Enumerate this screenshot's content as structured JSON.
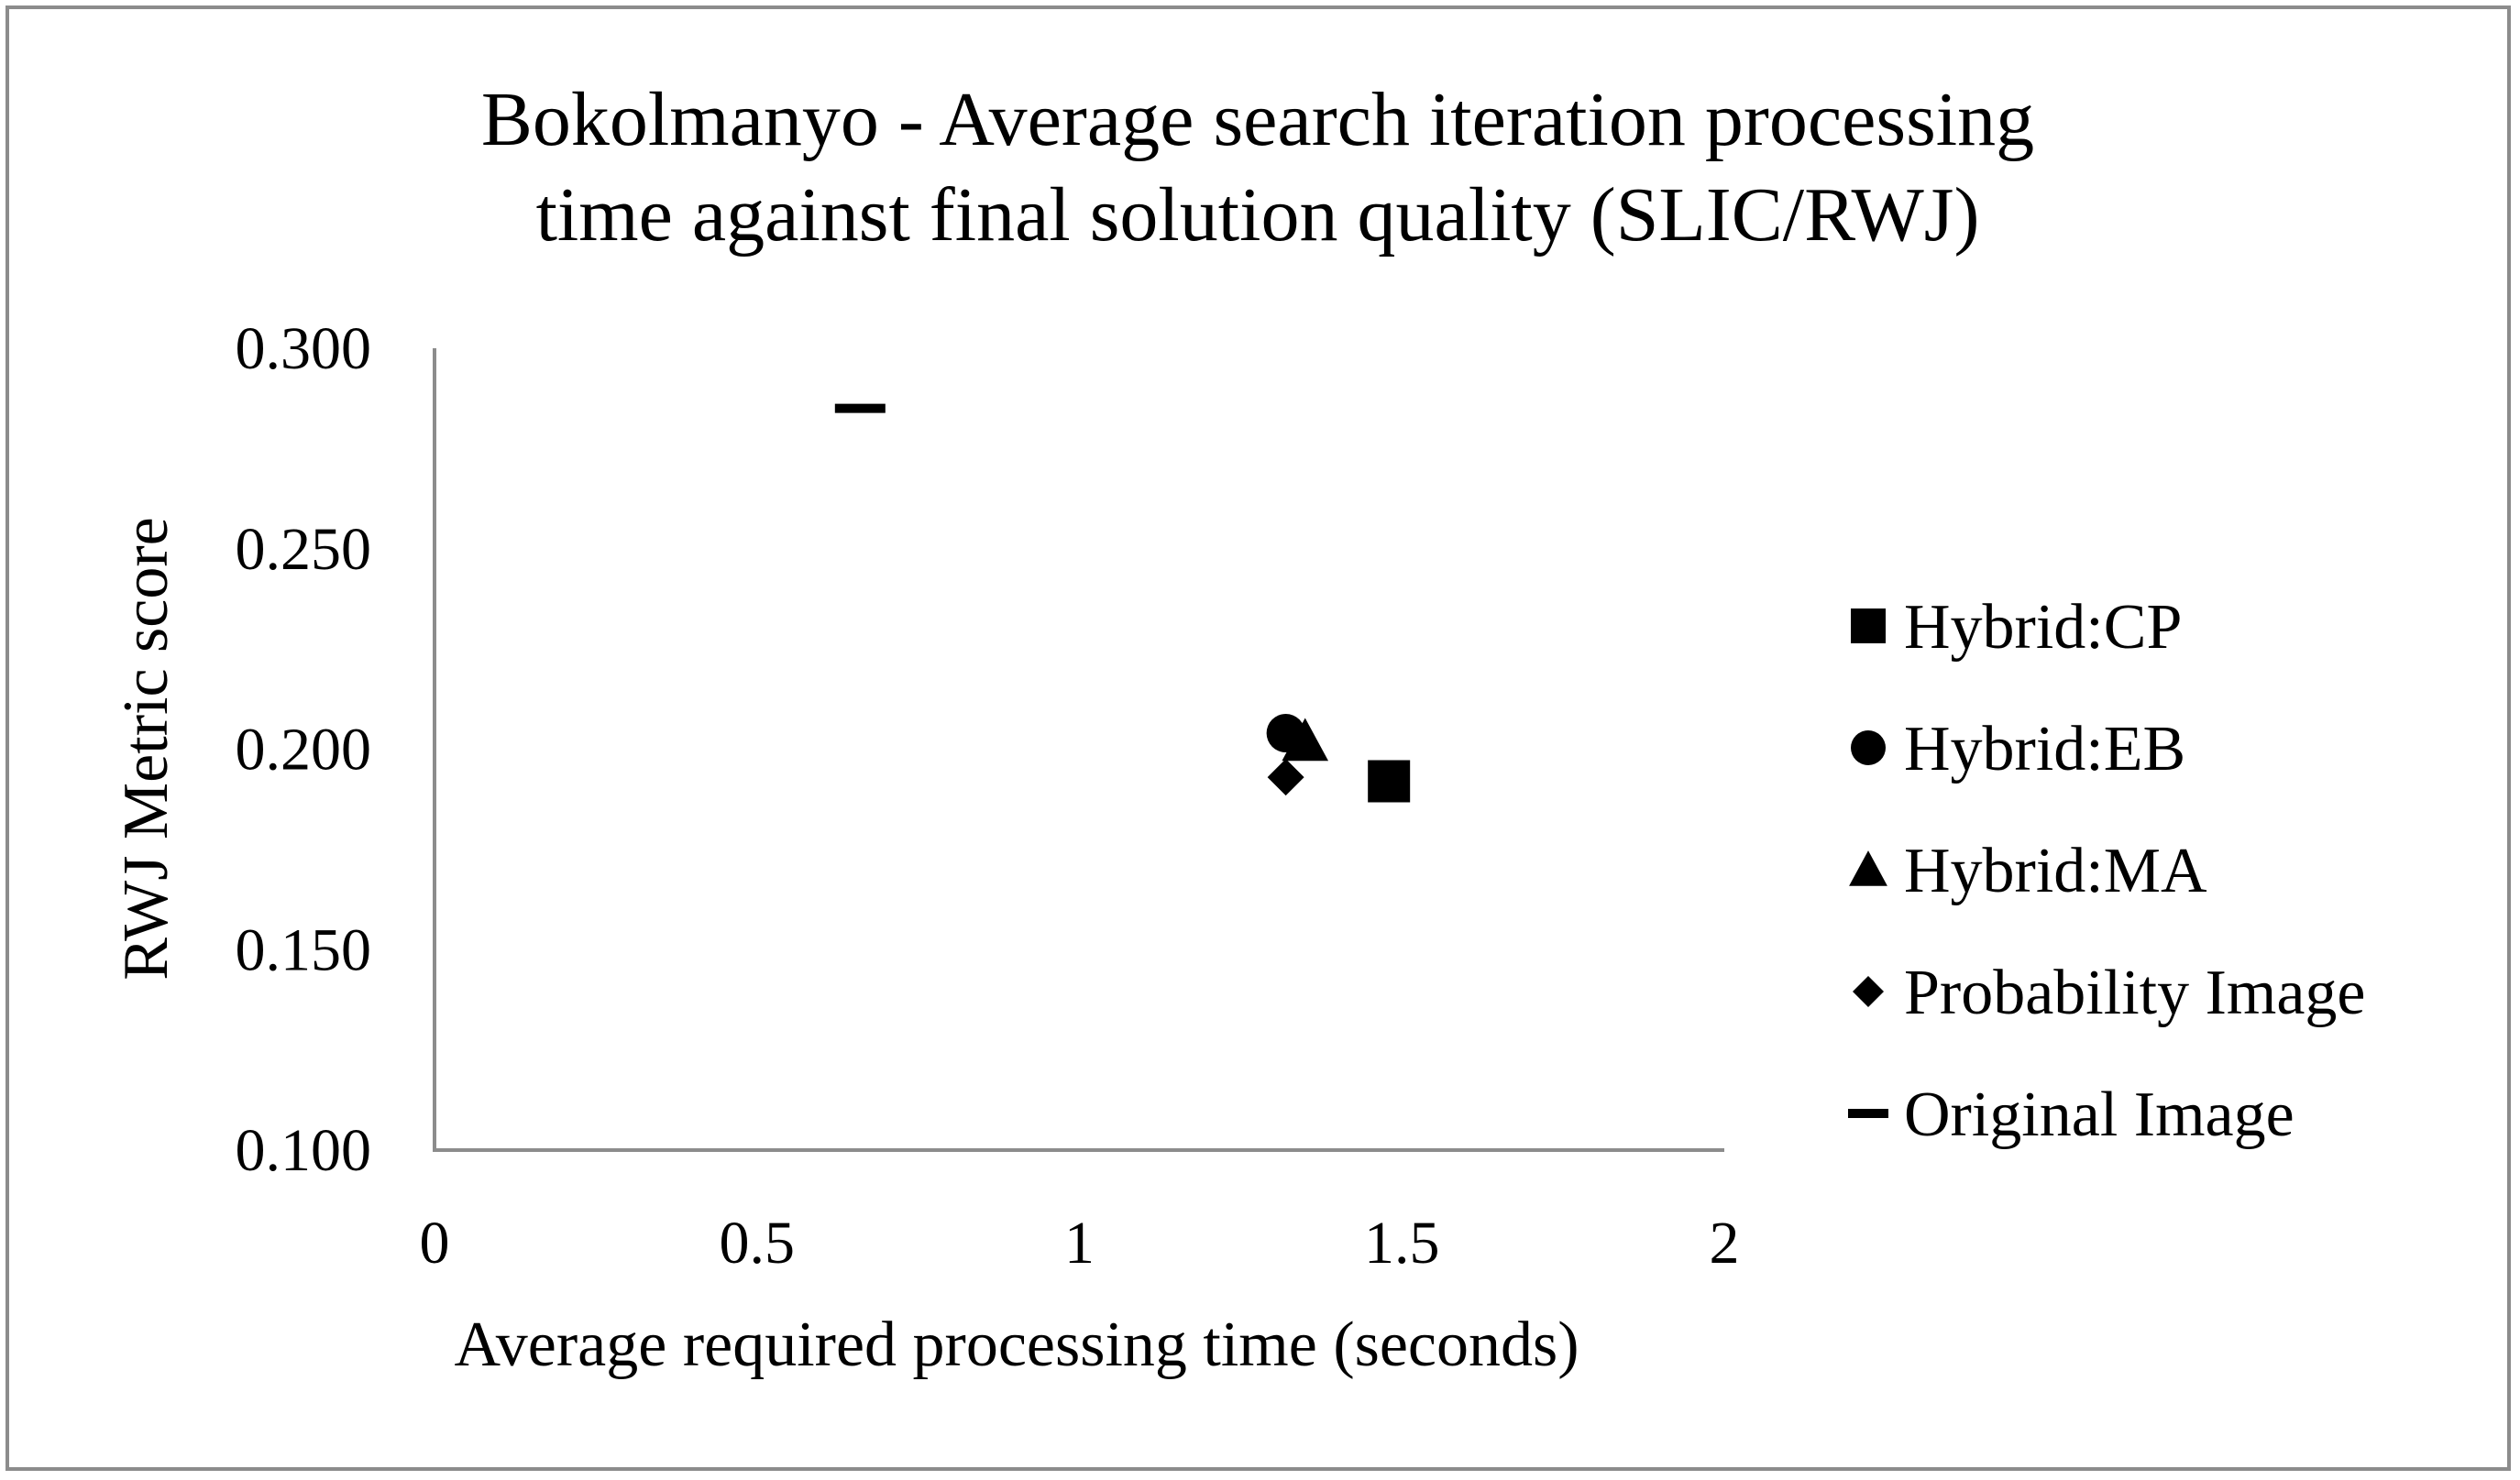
{
  "chart_data": {
    "type": "scatter",
    "title_lines": [
      "Bokolmanyo - Average search iteration processing",
      "time against final solution quality (SLIC/RWJ)"
    ],
    "xlabel": "Average required processing time (seconds)",
    "ylabel": "RWJ Metric score",
    "xlim": [
      0,
      2
    ],
    "ylim": [
      0.1,
      0.3
    ],
    "x_ticks": [
      "0",
      "0.5",
      "1",
      "1.5",
      "2"
    ],
    "y_ticks": [
      "0.100",
      "0.150",
      "0.200",
      "0.250",
      "0.300"
    ],
    "grid": false,
    "legend_position": "right",
    "series": [
      {
        "name": "Hybrid:CP",
        "marker": "square",
        "color": "#000000",
        "points": [
          {
            "x": 1.48,
            "y": 0.192
          }
        ]
      },
      {
        "name": "Hybrid:EB",
        "marker": "circle",
        "color": "#000000",
        "points": [
          {
            "x": 1.32,
            "y": 0.204
          }
        ]
      },
      {
        "name": "Hybrid:MA",
        "marker": "triangle",
        "color": "#000000",
        "points": [
          {
            "x": 1.35,
            "y": 0.202
          }
        ]
      },
      {
        "name": "Probability Image",
        "marker": "diamond",
        "color": "#000000",
        "points": [
          {
            "x": 1.32,
            "y": 0.193
          }
        ]
      },
      {
        "name": "Original Image",
        "marker": "dash",
        "color": "#000000",
        "points": [
          {
            "x": 0.66,
            "y": 0.285
          }
        ]
      }
    ]
  }
}
